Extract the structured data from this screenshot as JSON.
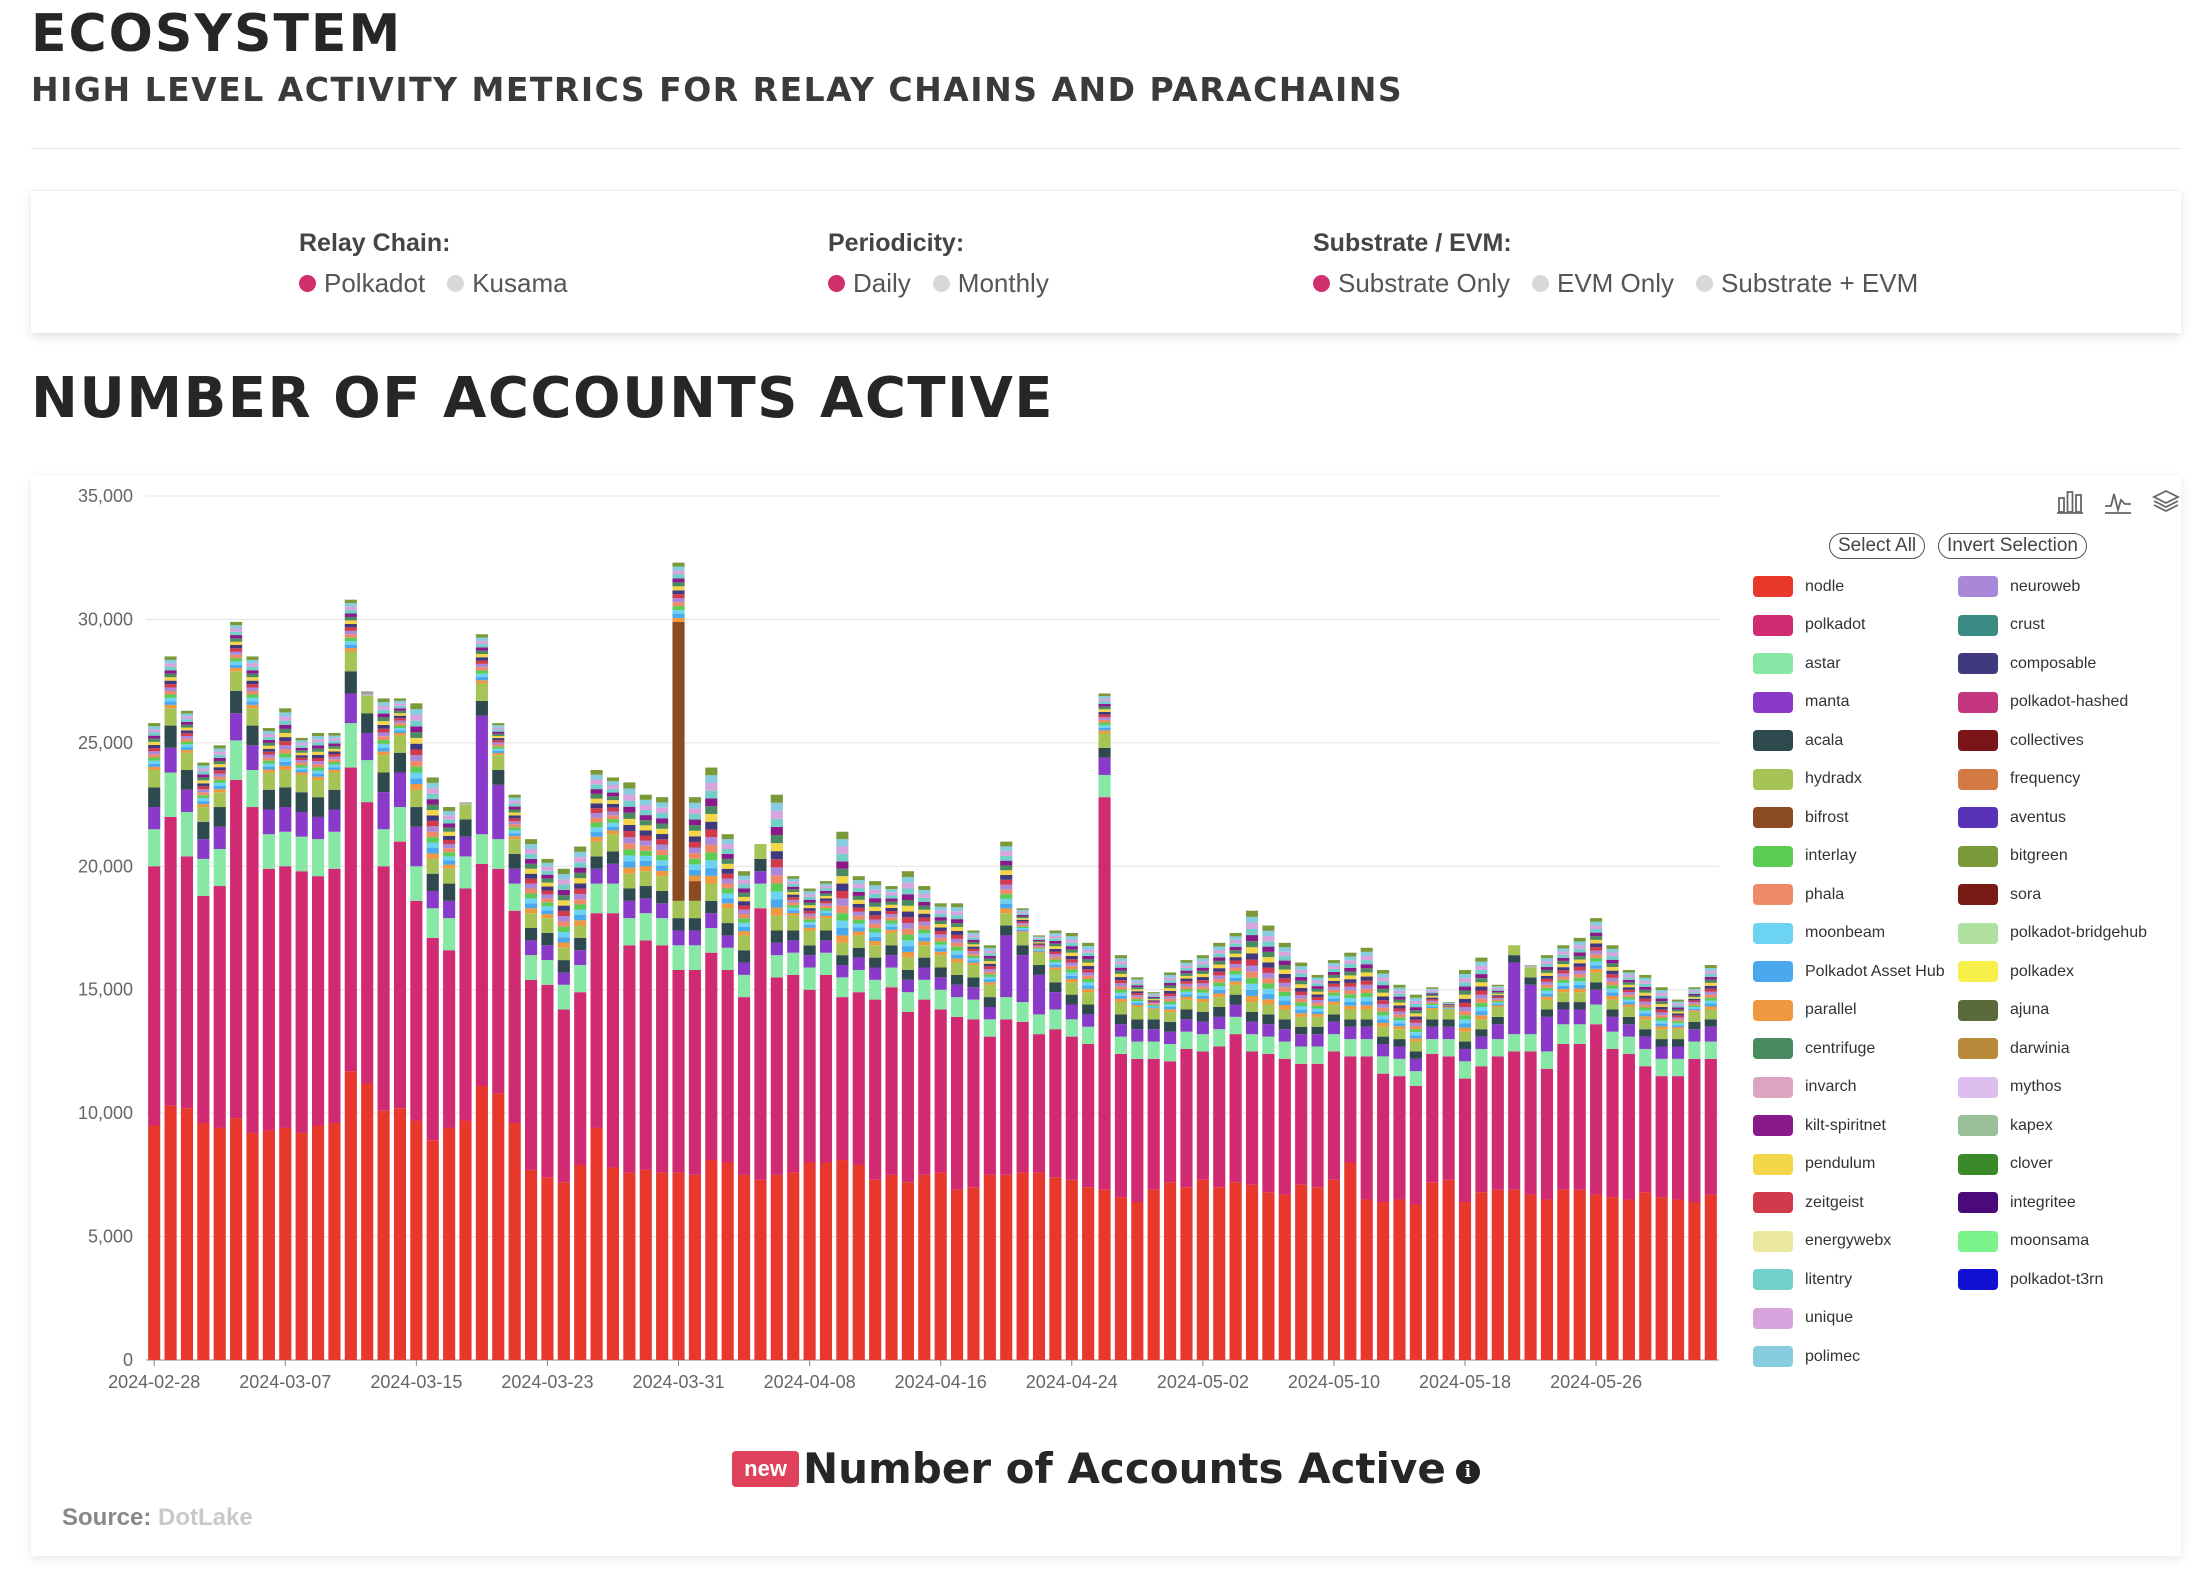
{
  "header": {
    "title": "ECOSYSTEM",
    "subtitle": "HIGH LEVEL ACTIVITY METRICS FOR RELAY CHAINS AND PARACHAINS"
  },
  "filters": {
    "relay": {
      "label": "Relay Chain:",
      "options": [
        "Polkadot",
        "Kusama"
      ],
      "selected": "Polkadot"
    },
    "periodicity": {
      "label": "Periodicity:",
      "options": [
        "Daily",
        "Monthly"
      ],
      "selected": "Daily"
    },
    "substrate": {
      "label": "Substrate / EVM:",
      "options": [
        "Substrate Only",
        "EVM Only",
        "Substrate + EVM"
      ],
      "selected": "Substrate Only"
    },
    "active_color": "#d1306f",
    "inactive_color": "#d8d8d8"
  },
  "section": {
    "title": "NUMBER OF ACCOUNTS ACTIVE"
  },
  "legend_controls": {
    "select_all": "Select All",
    "invert": "Invert Selection"
  },
  "toolbox_icons": [
    "bar-chart-icon",
    "line-chart-icon",
    "stack-icon"
  ],
  "footer": {
    "badge": "new",
    "title": "Number of Accounts Active",
    "info_glyph": "i",
    "source_label": "Source:",
    "source_name": "DotLake"
  },
  "chart_data": {
    "type": "bar",
    "stacked": true,
    "ylim": [
      0,
      35000
    ],
    "yticks": [
      0,
      5000,
      10000,
      15000,
      20000,
      25000,
      30000,
      35000
    ],
    "ytick_labels": [
      "0",
      "5,000",
      "10,000",
      "15,000",
      "20,000",
      "25,000",
      "30,000",
      "35,000"
    ],
    "xtick_labels": [
      "2024-02-28",
      "2024-03-07",
      "2024-03-15",
      "2024-03-23",
      "2024-03-31",
      "2024-04-08",
      "2024-04-16",
      "2024-04-24",
      "2024-05-02",
      "2024-05-10",
      "2024-05-18",
      "2024-05-26"
    ],
    "start_date": "2024-02-28",
    "grid": true,
    "legend_position": "right",
    "totals": [
      25800,
      28500,
      26300,
      24200,
      24900,
      29900,
      28500,
      25600,
      26400,
      25200,
      25400,
      25400,
      30800,
      27100,
      26800,
      26800,
      26600,
      23600,
      22400,
      22600,
      29400,
      25800,
      22900,
      21100,
      20300,
      19900,
      20800,
      23900,
      23600,
      23400,
      22900,
      22800,
      32300,
      22800,
      24000,
      21300,
      19800,
      20400,
      22900,
      19600,
      19100,
      19400,
      21400,
      19600,
      19400,
      19200,
      19800,
      19200,
      18500,
      18500,
      17400,
      16800,
      21000,
      18300,
      17200,
      17400,
      17300,
      16900,
      27000,
      16400,
      15500,
      14900,
      15700,
      16200,
      16400,
      16900,
      17300,
      18200,
      17600,
      16900,
      16100,
      15600,
      16200,
      16500,
      16700,
      15800,
      15200,
      14800,
      15100,
      14500,
      15800,
      16300,
      15200,
      15800,
      16000,
      16400,
      16800,
      17100,
      17900,
      16800,
      15800,
      15600,
      15100,
      14600,
      15100,
      16000
    ],
    "nodle": [
      9500,
      10300,
      10200,
      9600,
      9400,
      9800,
      9200,
      9300,
      9400,
      9200,
      9500,
      9600,
      11700,
      11200,
      10100,
      10200,
      9700,
      8900,
      9400,
      9700,
      11100,
      10800,
      9600,
      7700,
      7400,
      7200,
      7900,
      9400,
      7800,
      7600,
      7700,
      7600,
      7600,
      7500,
      8100,
      8000,
      7500,
      7300,
      7500,
      7600,
      8000,
      8000,
      8100,
      7900,
      7300,
      7500,
      7200,
      7500,
      7600,
      6900,
      7000,
      7500,
      7500,
      7600,
      7600,
      7400,
      7300,
      7000,
      6900,
      6600,
      6400,
      6900,
      7200,
      7000,
      7300,
      7000,
      7200,
      7100,
      6800,
      6700,
      7100,
      7000,
      7300,
      8000,
      6500,
      6400,
      6500,
      6300,
      7200,
      7300,
      6400,
      6800,
      6900,
      6900,
      6700,
      6500,
      6900,
      6900,
      6700,
      6600,
      6500,
      6800,
      6600,
      6500,
      6400,
      6700
    ],
    "polkadot": [
      10500,
      11700,
      10200,
      9200,
      9800,
      13700,
      13200,
      10600,
      10600,
      10600,
      10100,
      10300,
      12300,
      11400,
      9900,
      10800,
      8900,
      8200,
      7200,
      9400,
      9000,
      9100,
      8600,
      7700,
      7800,
      7000,
      7000,
      8700,
      10300,
      9200,
      9300,
      9200,
      8200,
      8300,
      8400,
      7800,
      7200,
      11000,
      8000,
      8000,
      7000,
      7600,
      6600,
      7000,
      7300,
      7600,
      6900,
      7100,
      6600,
      7000,
      6800,
      5600,
      6300,
      6100,
      5600,
      6000,
      5800,
      5800,
      15900,
      5800,
      5800,
      5300,
      4900,
      5600,
      5200,
      5700,
      6000,
      5400,
      5600,
      5500,
      4900,
      5000,
      5200,
      4300,
      5800,
      5200,
      5000,
      4800,
      5200,
      5000,
      5000,
      5100,
      5400,
      5600,
      5800,
      5300,
      5900,
      5900,
      6900,
      6000,
      5900,
      5100,
      4900,
      5000,
      5800,
      5500
    ],
    "astar": [
      1500,
      1800,
      1800,
      1500,
      1500,
      1600,
      1500,
      1400,
      1400,
      1400,
      1500,
      1500,
      1800,
      1700,
      1500,
      1400,
      1400,
      1200,
      1300,
      1300,
      1200,
      1200,
      1100,
      1000,
      1000,
      1000,
      1100,
      1200,
      1200,
      1100,
      1100,
      1100,
      1000,
      1000,
      1000,
      900,
      900,
      1000,
      900,
      900,
      900,
      900,
      800,
      900,
      800,
      800,
      800,
      800,
      800,
      800,
      800,
      700,
      900,
      800,
      800,
      800,
      700,
      700,
      900,
      700,
      700,
      700,
      700,
      700,
      700,
      700,
      700,
      700,
      700,
      700,
      700,
      700,
      700,
      700,
      700,
      700,
      700,
      600,
      600,
      700,
      700,
      700,
      700,
      700,
      700,
      700,
      800,
      800,
      800,
      700,
      700,
      700,
      700,
      700,
      700,
      700
    ],
    "manta": [
      900,
      1000,
      900,
      800,
      900,
      1100,
      1000,
      1000,
      1000,
      1000,
      900,
      900,
      1200,
      1100,
      1500,
      1400,
      1600,
      700,
      700,
      800,
      4800,
      2200,
      600,
      600,
      600,
      500,
      600,
      600,
      800,
      700,
      600,
      600,
      600,
      600,
      600,
      500,
      500,
      500,
      500,
      500,
      500,
      500,
      500,
      500,
      500,
      500,
      500,
      500,
      500,
      500,
      500,
      500,
      2500,
      1900,
      1600,
      700,
      600,
      500,
      700,
      500,
      500,
      500,
      500,
      500,
      500,
      500,
      500,
      500,
      500,
      500,
      500,
      500,
      500,
      500,
      500,
      500,
      500,
      500,
      500,
      500,
      500,
      500,
      600,
      2900,
      2000,
      1400,
      600,
      600,
      600,
      600,
      500,
      500,
      500,
      500,
      500,
      600
    ],
    "acala": [
      800,
      900,
      800,
      700,
      800,
      900,
      800,
      800,
      800,
      800,
      800,
      800,
      900,
      800,
      800,
      800,
      800,
      700,
      700,
      700,
      600,
      600,
      600,
      500,
      500,
      500,
      500,
      500,
      500,
      500,
      500,
      500,
      500,
      500,
      500,
      500,
      500,
      500,
      500,
      400,
      400,
      400,
      400,
      400,
      400,
      400,
      400,
      400,
      400,
      400,
      400,
      400,
      400,
      400,
      400,
      400,
      400,
      400,
      400,
      400,
      400,
      400,
      400,
      400,
      400,
      400,
      400,
      400,
      400,
      400,
      300,
      300,
      300,
      300,
      300,
      300,
      300,
      300,
      300,
      300,
      300,
      300,
      300,
      300,
      300,
      300,
      300,
      300,
      300,
      300,
      300,
      300,
      300,
      300,
      300,
      300
    ],
    "hydradx": [
      700,
      700,
      700,
      600,
      600,
      800,
      700,
      700,
      700,
      700,
      700,
      700,
      800,
      700,
      700,
      700,
      700,
      600,
      600,
      600,
      700,
      600,
      600,
      600,
      600,
      500,
      500,
      600,
      700,
      600,
      600,
      600,
      700,
      700,
      700,
      600,
      600,
      600,
      600,
      600,
      600,
      500,
      500,
      500,
      500,
      500,
      500,
      500,
      500,
      500,
      500,
      500,
      500,
      500,
      500,
      500,
      500,
      500,
      600,
      500,
      500,
      400,
      400,
      400,
      400,
      400,
      400,
      400,
      400,
      400,
      400,
      400,
      400,
      400,
      400,
      400,
      400,
      400,
      400,
      400,
      400,
      400,
      400,
      400,
      400,
      400,
      400,
      400,
      400,
      400,
      400,
      400,
      400,
      400,
      400,
      400
    ],
    "bifrost": [
      0,
      0,
      0,
      0,
      0,
      0,
      0,
      0,
      0,
      0,
      0,
      0,
      0,
      0,
      0,
      0,
      0,
      0,
      0,
      0,
      0,
      0,
      0,
      0,
      0,
      0,
      0,
      0,
      0,
      0,
      0,
      0,
      11300,
      800,
      0,
      0,
      0,
      0,
      0,
      0,
      0,
      0,
      0,
      0,
      0,
      0,
      0,
      0,
      0,
      0,
      0,
      0,
      0,
      0,
      0,
      0,
      0,
      0,
      0,
      0,
      0,
      0,
      0,
      0,
      0,
      0,
      0,
      0,
      0,
      0,
      0,
      0,
      0,
      0,
      0,
      0,
      0,
      0,
      0,
      0,
      0,
      0,
      0,
      0,
      0,
      0,
      0,
      0,
      0,
      0,
      0,
      0,
      0,
      0,
      0,
      0
    ]
  },
  "legend": [
    {
      "name": "nodle",
      "color": "#e8382b"
    },
    {
      "name": "polkadot",
      "color": "#d02b72"
    },
    {
      "name": "astar",
      "color": "#86e8a4"
    },
    {
      "name": "manta",
      "color": "#8a3ac9"
    },
    {
      "name": "acala",
      "color": "#2f4a4f"
    },
    {
      "name": "hydradx",
      "color": "#a5c455"
    },
    {
      "name": "bifrost",
      "color": "#8a4a22"
    },
    {
      "name": "interlay",
      "color": "#5ccc55"
    },
    {
      "name": "phala",
      "color": "#ee8a68"
    },
    {
      "name": "moonbeam",
      "color": "#6cd3f2"
    },
    {
      "name": "Polkadot Asset Hub",
      "color": "#4aa8ee"
    },
    {
      "name": "parallel",
      "color": "#ee9840"
    },
    {
      "name": "centrifuge",
      "color": "#4a8a60"
    },
    {
      "name": "invarch",
      "color": "#dda4bf"
    },
    {
      "name": "kilt-spiritnet",
      "color": "#8a1a8a"
    },
    {
      "name": "pendulum",
      "color": "#f4d64a"
    },
    {
      "name": "zeitgeist",
      "color": "#d03a4a"
    },
    {
      "name": "energywebx",
      "color": "#ebe6a0"
    },
    {
      "name": "litentry",
      "color": "#72d0c8"
    },
    {
      "name": "unique",
      "color": "#d9a4dd"
    },
    {
      "name": "polimec",
      "color": "#88cce0"
    },
    {
      "name": "neuroweb",
      "color": "#a987d9"
    },
    {
      "name": "crust",
      "color": "#3a8a84"
    },
    {
      "name": "composable",
      "color": "#3f3a7e"
    },
    {
      "name": "polkadot-hashed",
      "color": "#c4377e"
    },
    {
      "name": "collectives",
      "color": "#7a1418"
    },
    {
      "name": "frequency",
      "color": "#d37a44"
    },
    {
      "name": "aventus",
      "color": "#5a32b8"
    },
    {
      "name": "bitgreen",
      "color": "#7a9a3a"
    },
    {
      "name": "sora",
      "color": "#7a1a14"
    },
    {
      "name": "polkadot-bridgehub",
      "color": "#b0e0a0"
    },
    {
      "name": "polkadex",
      "color": "#f7f04a"
    },
    {
      "name": "ajuna",
      "color": "#5a6a3a"
    },
    {
      "name": "darwinia",
      "color": "#b88a3a"
    },
    {
      "name": "mythos",
      "color": "#dcbfee"
    },
    {
      "name": "kapex",
      "color": "#99c098"
    },
    {
      "name": "clover",
      "color": "#3a8a2a"
    },
    {
      "name": "integritee",
      "color": "#4a0a7a"
    },
    {
      "name": "moonsama",
      "color": "#7af48a"
    },
    {
      "name": "polkadot-t3rn",
      "color": "#1010d0"
    }
  ]
}
